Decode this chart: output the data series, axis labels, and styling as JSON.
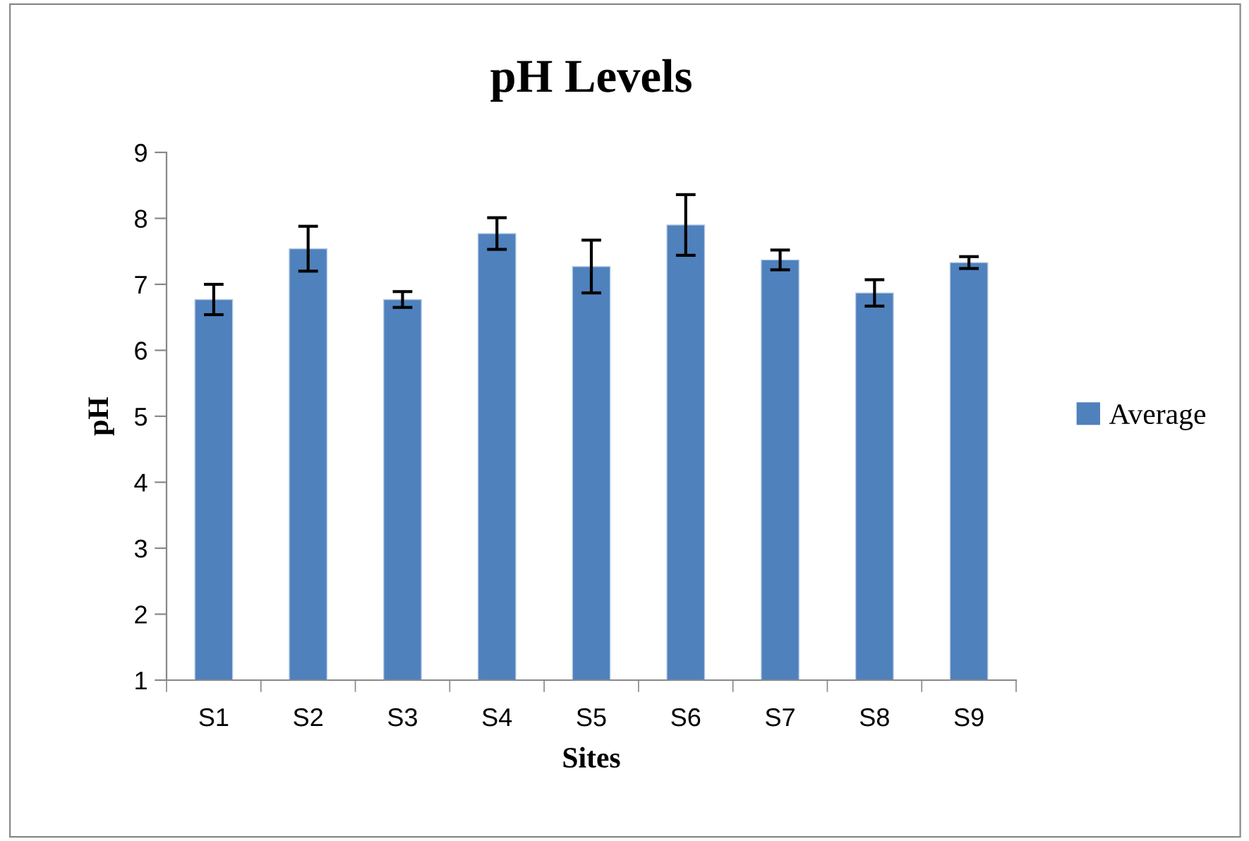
{
  "chart_data": {
    "type": "bar",
    "title": "pH Levels",
    "xlabel": "Sites",
    "ylabel": "pH",
    "categories": [
      "S1",
      "S2",
      "S3",
      "S4",
      "S5",
      "S6",
      "S7",
      "S8",
      "S9"
    ],
    "series": [
      {
        "name": "Average",
        "color": "#4f81bd",
        "values": [
          6.77,
          7.54,
          6.77,
          7.77,
          7.27,
          7.9,
          7.37,
          6.87,
          7.33
        ],
        "errors": [
          0.23,
          0.34,
          0.12,
          0.24,
          0.4,
          0.46,
          0.15,
          0.2,
          0.09
        ]
      }
    ],
    "ylim": [
      1,
      9
    ],
    "yticks": [
      1,
      2,
      3,
      4,
      5,
      6,
      7,
      8,
      9
    ],
    "grid": false,
    "legend": "right"
  }
}
